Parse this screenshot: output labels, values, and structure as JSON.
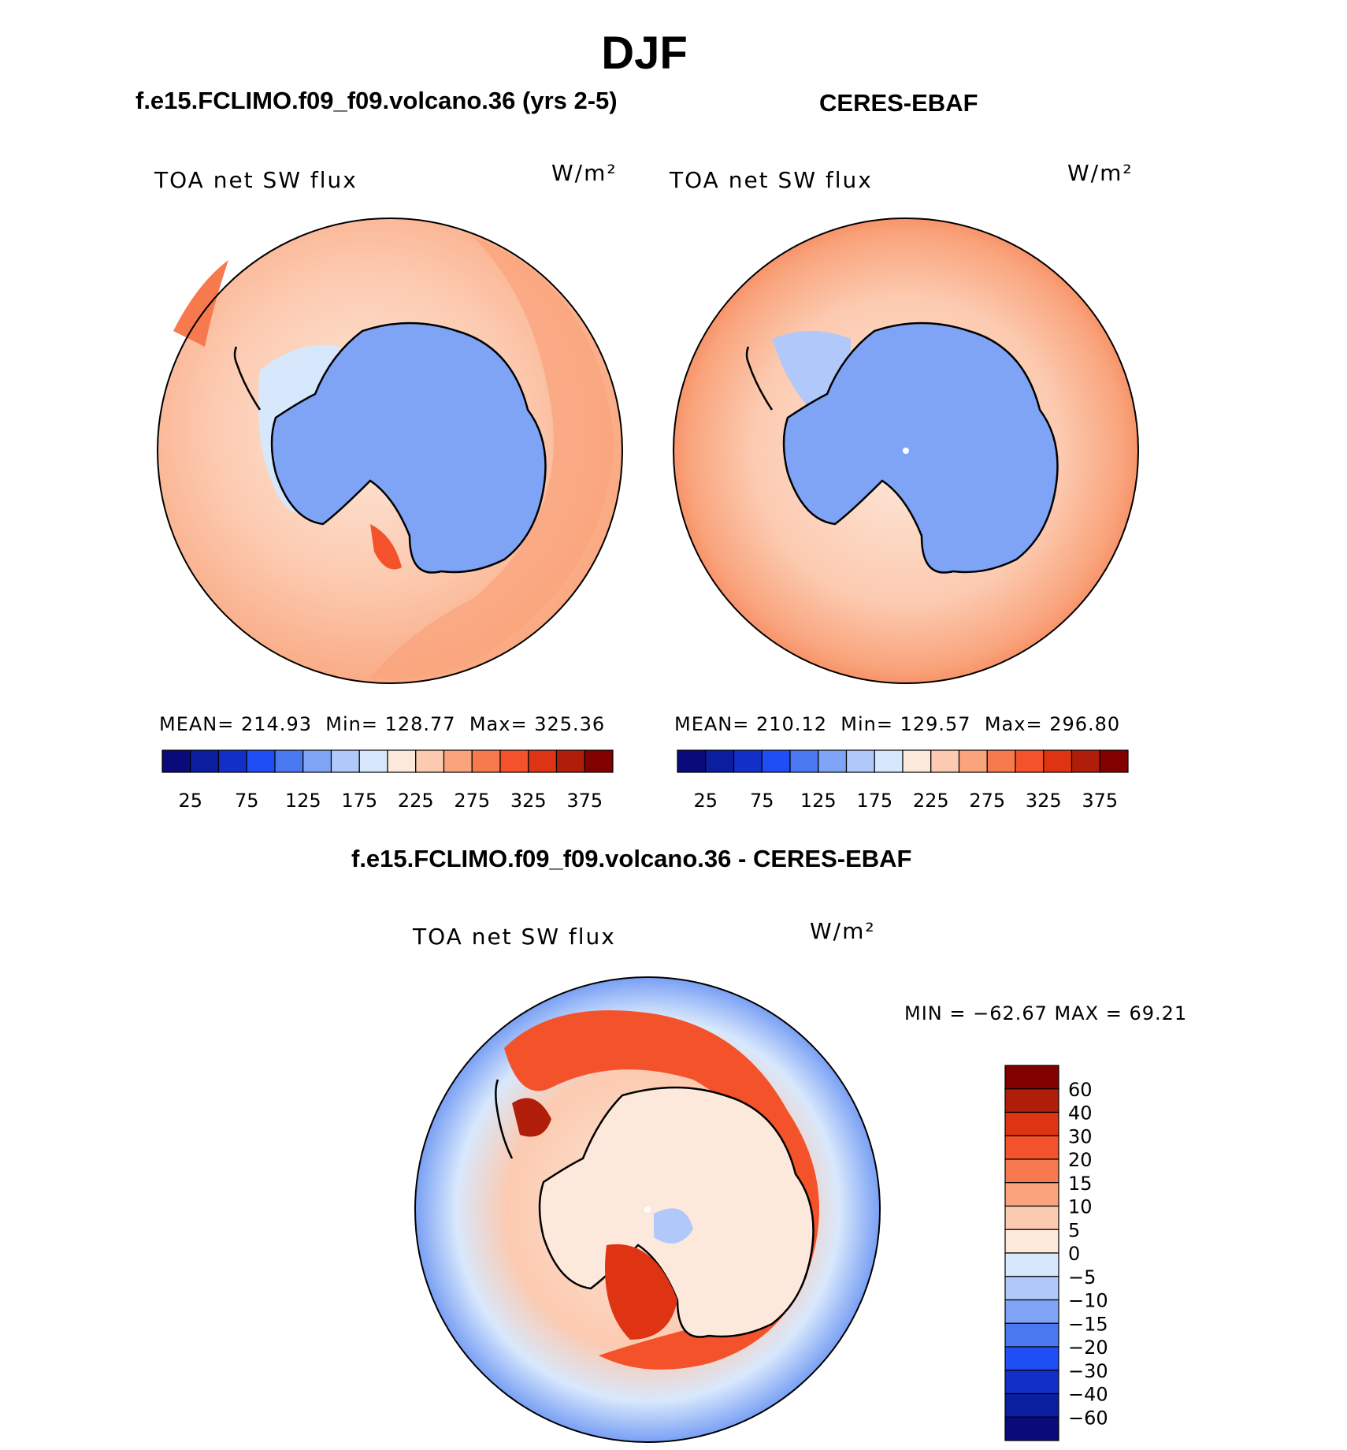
{
  "page_title": "DJF",
  "chart_data": [
    {
      "type": "heatmap",
      "projection": "south-polar-stereographic",
      "title": "f.e15.FCLIMO.f09_f09.volcano.36 (yrs 2-5)",
      "variable": "TOA net SW flux",
      "units": "W/m²",
      "stats": {
        "mean_label": "MEAN=",
        "mean": "214.93",
        "min_label": "Min=",
        "min": "128.77",
        "max_label": "Max=",
        "max": "325.36"
      },
      "colorbar": {
        "orientation": "horizontal",
        "colors": [
          "#0a0a7a",
          "#0c1ea0",
          "#1230c8",
          "#1f4ef5",
          "#4a78f0",
          "#7fa4f5",
          "#b0c8fa",
          "#d8e8fc",
          "#fde9dc",
          "#fccab0",
          "#f9a47c",
          "#f77a4f",
          "#f4522a",
          "#de3414",
          "#b01e0a",
          "#820000"
        ],
        "tick_labels": [
          "25",
          "75",
          "125",
          "175",
          "225",
          "275",
          "325",
          "375"
        ]
      }
    },
    {
      "type": "heatmap",
      "projection": "south-polar-stereographic",
      "title": "CERES-EBAF",
      "variable": "TOA net SW flux",
      "units": "W/m²",
      "stats": {
        "mean_label": "MEAN=",
        "mean": "210.12",
        "min_label": "Min=",
        "min": "129.57",
        "max_label": "Max=",
        "max": "296.80"
      },
      "colorbar": {
        "orientation": "horizontal",
        "colors": [
          "#0a0a7a",
          "#0c1ea0",
          "#1230c8",
          "#1f4ef5",
          "#4a78f0",
          "#7fa4f5",
          "#b0c8fa",
          "#d8e8fc",
          "#fde9dc",
          "#fccab0",
          "#f9a47c",
          "#f77a4f",
          "#f4522a",
          "#de3414",
          "#b01e0a",
          "#820000"
        ],
        "tick_labels": [
          "25",
          "75",
          "125",
          "175",
          "225",
          "275",
          "325",
          "375"
        ]
      }
    },
    {
      "type": "heatmap",
      "projection": "south-polar-stereographic",
      "title": "f.e15.FCLIMO.f09_f09.volcano.36 - CERES-EBAF",
      "variable": "TOA net SW flux",
      "units": "W/m²",
      "stats": {
        "text": "MIN = −62.67 MAX =   69.21",
        "min": -62.67,
        "max": 69.21
      },
      "colorbar": {
        "orientation": "vertical",
        "colors_top_to_bottom": [
          "#820000",
          "#b01e0a",
          "#de3414",
          "#f4522a",
          "#f77a4f",
          "#f9a47c",
          "#fccab0",
          "#fde9dc",
          "#d8e8fc",
          "#b0c8fa",
          "#7fa4f5",
          "#4a78f0",
          "#1f4ef5",
          "#1230c8",
          "#0c1ea0",
          "#0a0a7a"
        ],
        "tick_labels": [
          "60",
          "40",
          "30",
          "20",
          "15",
          "10",
          "5",
          "0",
          "−5",
          "−10",
          "−15",
          "−20",
          "−30",
          "−40",
          "−60"
        ]
      }
    }
  ]
}
